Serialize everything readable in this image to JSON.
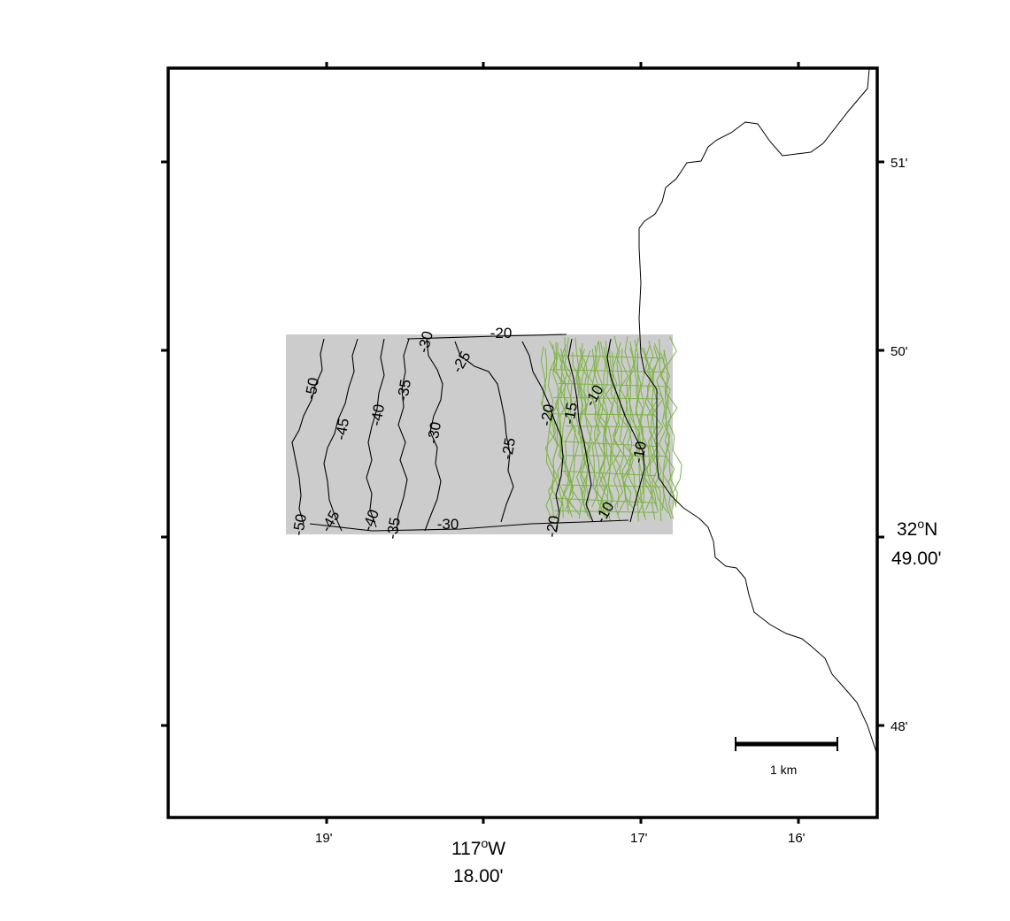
{
  "map": {
    "x_axis": {
      "ticks": [
        "19'",
        "17'",
        "16'"
      ],
      "center_degree": "117",
      "center_degree_sup": "o",
      "center_hemisphere": "W",
      "center_minutes": "18.00'"
    },
    "y_axis": {
      "ticks": [
        "51'",
        "50'",
        "48'"
      ],
      "center_degree": "32",
      "center_degree_sup": "o",
      "center_hemisphere": "N",
      "center_minutes": "49.00'"
    },
    "scale_bar": {
      "label": "1 km"
    },
    "contour_labels": [
      "-50",
      "-45",
      "-40",
      "-35",
      "-30",
      "-25",
      "-20",
      "-15",
      "-10",
      "-50",
      "-45",
      "-40",
      "-35",
      "-30",
      "-30",
      "-25",
      "-20",
      "-10",
      "-10",
      "-20"
    ],
    "colors": {
      "survey_area_fill": "#cccccc",
      "track_lines": "#7cb342",
      "coastline": "#000000",
      "frame": "#000000"
    }
  }
}
